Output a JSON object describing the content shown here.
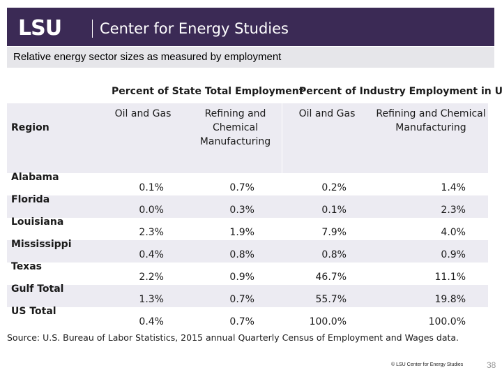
{
  "header": {
    "logo": "LSU",
    "org": "Center for Energy Studies",
    "background": "#3b2a55"
  },
  "subtitle": "Relative energy sector sizes as measured by employment",
  "table": {
    "group_headers": [
      "Percent of State Total Employment",
      "Percent of Industry Employment in US"
    ],
    "region_header": "Region",
    "column_headers": [
      [
        "Oil and Gas"
      ],
      [
        "Refining and",
        "Chemical",
        "Manufacturing"
      ],
      [
        "Oil and Gas"
      ],
      [
        "Refining and Chemical",
        "Manufacturing"
      ]
    ],
    "rows": [
      {
        "region": "Alabama",
        "values": [
          "0.1%",
          "0.7%",
          "0.2%",
          "1.4%"
        ]
      },
      {
        "region": "Florida",
        "values": [
          "0.0%",
          "0.3%",
          "0.1%",
          "2.3%"
        ]
      },
      {
        "region": "Louisiana",
        "values": [
          "2.3%",
          "1.9%",
          "7.9%",
          "4.0%"
        ]
      },
      {
        "region": "Mississippi",
        "values": [
          "0.4%",
          "0.8%",
          "0.8%",
          "0.9%"
        ]
      },
      {
        "region": "Texas",
        "values": [
          "2.2%",
          "0.9%",
          "46.7%",
          "11.1%"
        ]
      },
      {
        "region": "Gulf Total",
        "values": [
          "1.3%",
          "0.7%",
          "55.7%",
          "19.8%"
        ]
      },
      {
        "region": "US Total",
        "values": [
          "0.4%",
          "0.7%",
          "100.0%",
          "100.0%"
        ]
      }
    ],
    "shade_color": "#ecebf2"
  },
  "source": "Source: U.S. Bureau of Labor Statistics, 2015 annual Quarterly Census of Employment and Wages data.",
  "footer": {
    "copyright": "© LSU Center for Energy Studies",
    "page_number": "38"
  }
}
